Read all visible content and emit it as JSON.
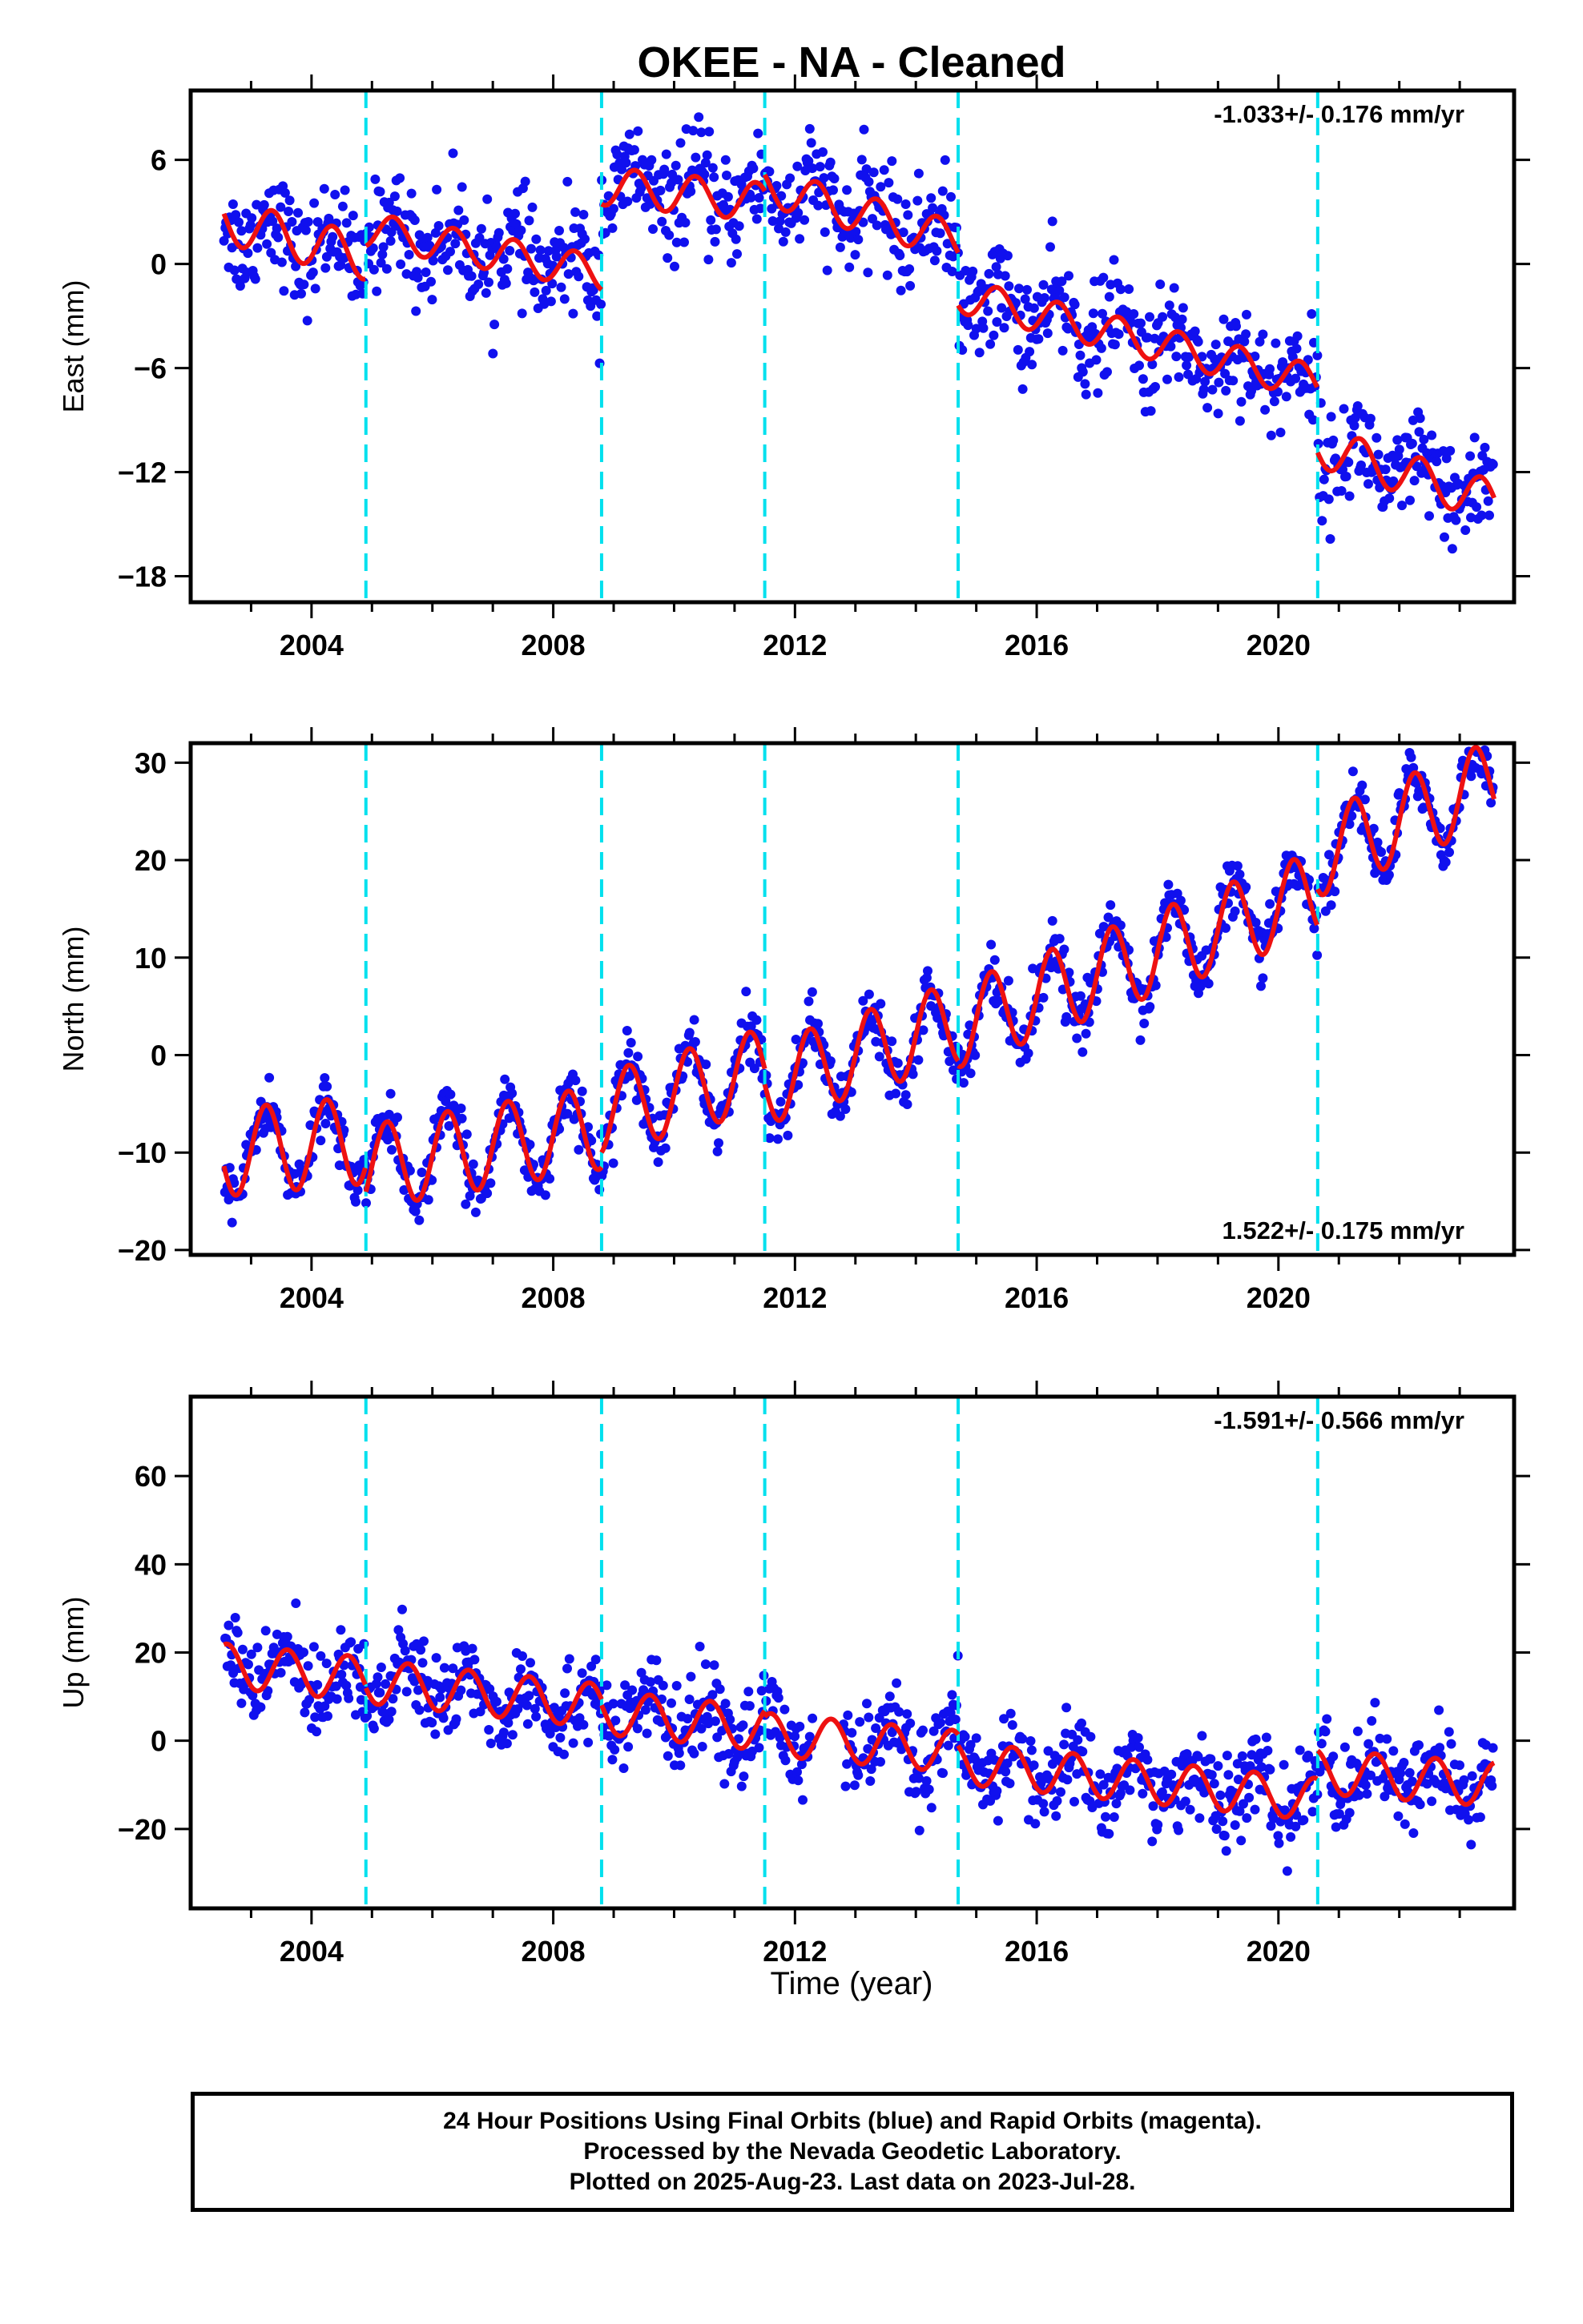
{
  "title": "OKEE  - NA - Cleaned",
  "colors": {
    "data": "#1010ee",
    "model": "#ee1111",
    "break_lines": "#00e0ee",
    "rapid_orbits": "magenta"
  },
  "xaxis": {
    "label": "Time (year)",
    "range": [
      2002.0,
      2023.9
    ],
    "ticks": [
      "2004",
      "2008",
      "2012",
      "2016",
      "2020"
    ]
  },
  "breaks": [
    2004.9,
    2008.8,
    2011.5,
    2014.7,
    2020.65
  ],
  "caption": {
    "line1": "24 Hour Positions Using Final Orbits (blue) and Rapid Orbits (magenta).",
    "line2": "Processed by the Nevada Geodetic Laboratory.",
    "line3": "Plotted on 2025-Aug-23. Last data on 2023-Jul-28."
  },
  "chart_data": [
    {
      "type": "scatter",
      "component": "east",
      "ylabel": "East (mm)",
      "rate_text": "-1.033+/- 0.176 mm/yr",
      "rate_position": "top-right",
      "ylim": [
        -19.5,
        10
      ],
      "yticks": [
        "6",
        "0",
        "−6",
        "−12",
        "−18"
      ],
      "ytick_values": [
        6,
        0,
        -6,
        -12,
        -18
      ],
      "xlim": [
        2002.0,
        2023.9
      ],
      "data_span": [
        2002.55,
        2023.57
      ],
      "model_segments": [
        {
          "x0": 2002.55,
          "x1": 2004.9,
          "offset": 2.5,
          "slope": -0.9,
          "amp": 1.3,
          "phase": 0.1
        },
        {
          "x0": 2004.9,
          "x1": 2008.8,
          "offset": 2.0,
          "slope": -0.65,
          "amp": 1.0,
          "phase": 0.1
        },
        {
          "x0": 2008.8,
          "x1": 2011.5,
          "offset": 4.5,
          "slope": -0.35,
          "amp": 1.1,
          "phase": 0.1
        },
        {
          "x0": 2011.5,
          "x1": 2014.7,
          "offset": 4.5,
          "slope": -1.0,
          "amp": 1.1,
          "phase": 0.1
        },
        {
          "x0": 2014.7,
          "x1": 2020.65,
          "offset": -1.8,
          "slope": -0.85,
          "amp": 1.0,
          "phase": 0.1
        },
        {
          "x0": 2020.65,
          "x1": 2023.57,
          "offset": -10.5,
          "slope": -1.1,
          "amp": 1.2,
          "phase": 0.1
        }
      ],
      "scatter_noise": 1.5,
      "n_points": 1100
    },
    {
      "type": "scatter",
      "component": "north",
      "ylabel": "North (mm)",
      "rate_text": "1.522+/- 0.175 mm/yr",
      "rate_position": "bottom-right",
      "ylim": [
        -20.5,
        32
      ],
      "yticks": [
        "30",
        "20",
        "10",
        "0",
        "−10",
        "−20"
      ],
      "ytick_values": [
        30,
        20,
        10,
        0,
        -10,
        -20
      ],
      "xlim": [
        2002.0,
        2023.9
      ],
      "data_span": [
        2002.55,
        2023.57
      ],
      "model_segments": [
        {
          "x0": 2002.55,
          "x1": 2004.9,
          "offset": -10.0,
          "slope": 0.55,
          "amp": 4.5,
          "phase": 0.0
        },
        {
          "x0": 2004.9,
          "x1": 2008.8,
          "offset": -11.5,
          "slope": 1.05,
          "amp": 4.3,
          "phase": 0.0
        },
        {
          "x0": 2008.8,
          "x1": 2011.5,
          "offset": -6.0,
          "slope": 1.7,
          "amp": 4.2,
          "phase": 0.0
        },
        {
          "x0": 2011.5,
          "x1": 2014.7,
          "offset": -3.0,
          "slope": 2.0,
          "amp": 4.2,
          "phase": 0.0
        },
        {
          "x0": 2014.7,
          "x1": 2020.65,
          "offset": 3.0,
          "slope": 2.3,
          "amp": 4.3,
          "phase": 0.0
        },
        {
          "x0": 2020.65,
          "x1": 2023.57,
          "offset": 20.5,
          "slope": 2.6,
          "amp": 4.3,
          "phase": 0.0
        }
      ],
      "scatter_noise": 1.4,
      "n_points": 1100
    },
    {
      "type": "scatter",
      "component": "up",
      "ylabel": "Up (mm)",
      "rate_text": "-1.591+/- 0.566 mm/yr",
      "rate_position": "top-right",
      "ylim": [
        -38,
        78
      ],
      "yticks": [
        "60",
        "40",
        "20",
        "0",
        "−20"
      ],
      "ytick_values": [
        60,
        40,
        20,
        0,
        -20
      ],
      "xlim": [
        2002.0,
        2023.9
      ],
      "data_span": [
        2002.55,
        2023.57
      ],
      "model_segments": [
        {
          "x0": 2002.55,
          "x1": 2004.9,
          "offset": 17.0,
          "slope": -1.3,
          "amp": 5.0,
          "phase": 0.35
        },
        {
          "x0": 2004.9,
          "x1": 2008.8,
          "offset": 13.5,
          "slope": -1.45,
          "amp": 5.0,
          "phase": 0.35
        },
        {
          "x0": 2008.8,
          "x1": 2011.5,
          "offset": 6.5,
          "slope": -1.4,
          "amp": 5.0,
          "phase": 0.35
        },
        {
          "x0": 2011.5,
          "x1": 2014.7,
          "offset": 1.5,
          "slope": -1.25,
          "amp": 4.8,
          "phase": 0.35
        },
        {
          "x0": 2014.7,
          "x1": 2020.65,
          "offset": -5.0,
          "slope": -1.4,
          "amp": 4.8,
          "phase": 0.35
        },
        {
          "x0": 2020.65,
          "x1": 2023.57,
          "offset": -7.0,
          "slope": -1.0,
          "amp": 5.0,
          "phase": 0.35
        }
      ],
      "scatter_noise": 5.0,
      "n_points": 1100
    }
  ]
}
